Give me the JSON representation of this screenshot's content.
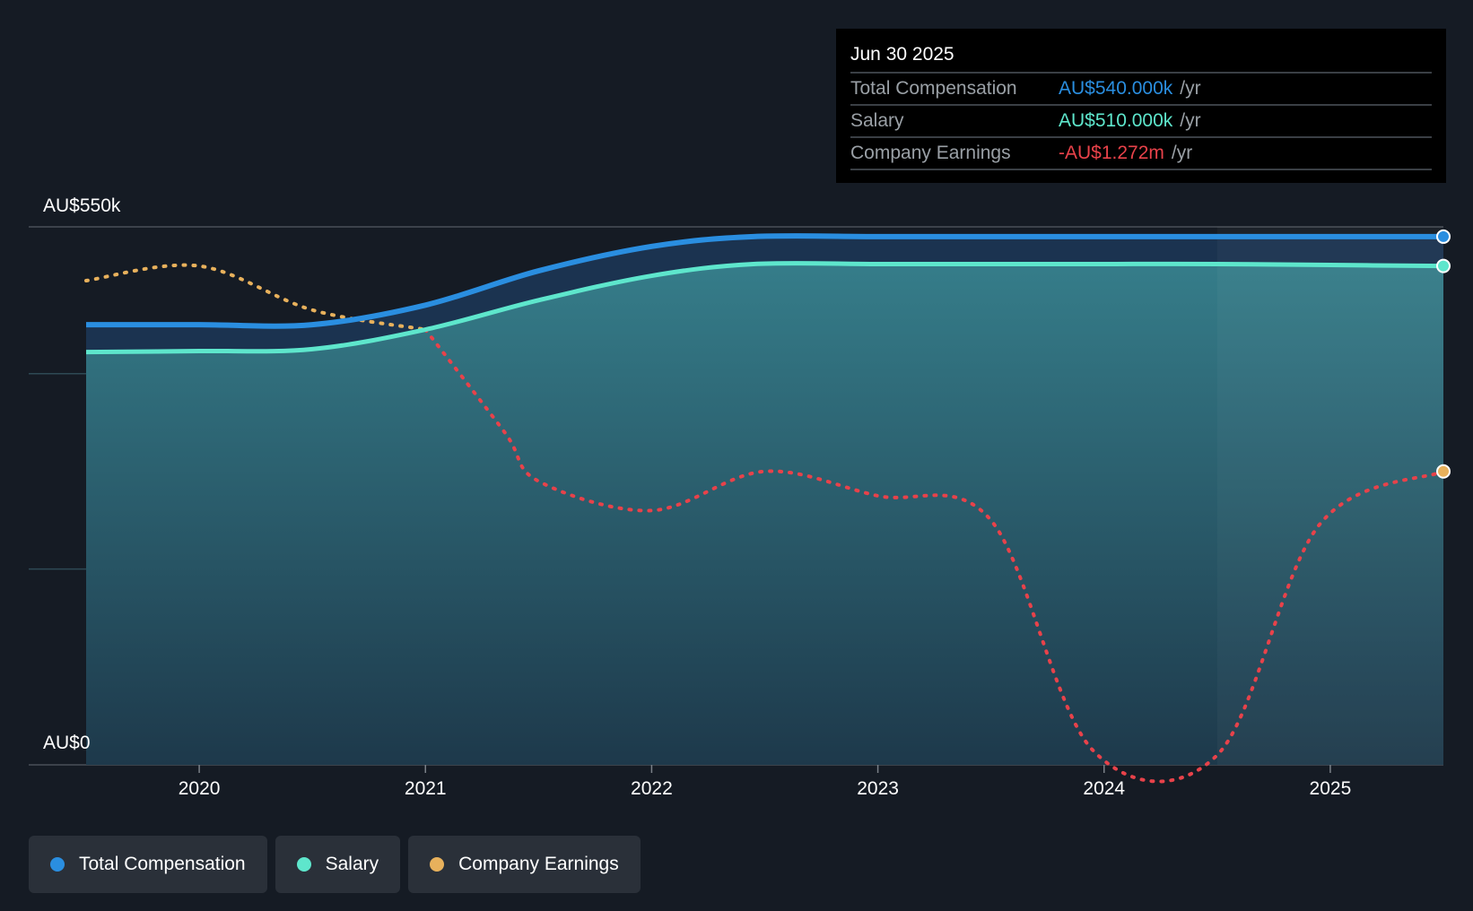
{
  "chart_data": {
    "type": "area",
    "y_axis": {
      "top_label": "AU$550k",
      "bottom_label": "AU$0",
      "ylim": [
        0,
        550
      ]
    },
    "x_ticks": [
      "2020",
      "2021",
      "2022",
      "2023",
      "2024",
      "2025"
    ],
    "xlim": [
      2019.5,
      2025.5
    ],
    "series": [
      {
        "name": "Total Compensation",
        "color": "#2a8ee0",
        "unit": "AU$k",
        "x": [
          2019.5,
          2020.0,
          2020.5,
          2021.0,
          2021.5,
          2022.0,
          2022.45,
          2023.0,
          2023.5,
          2024.0,
          2024.5,
          2025.0,
          2025.5
        ],
        "values": [
          450,
          450,
          450,
          470,
          505,
          530,
          540,
          540,
          540,
          540,
          540,
          540,
          540
        ]
      },
      {
        "name": "Salary",
        "color": "#5ee6cc",
        "unit": "AU$k",
        "x": [
          2019.5,
          2020.0,
          2020.5,
          2021.0,
          2021.5,
          2022.0,
          2022.45,
          2023.0,
          2023.5,
          2024.0,
          2024.5,
          2025.0,
          2025.5
        ],
        "values": [
          422,
          423,
          425,
          445,
          475,
          500,
          512,
          512,
          512,
          512,
          512,
          511,
          510
        ]
      },
      {
        "name": "Company Earnings",
        "color": "#e8b15c",
        "negative_color": "#e8424a",
        "unit": "relative",
        "x": [
          2019.5,
          2020.0,
          2020.5,
          2021.0,
          2021.35,
          2021.5,
          2022.0,
          2022.5,
          2023.0,
          2023.5,
          2023.95,
          2024.5,
          2024.95,
          2025.5
        ],
        "values": [
          495,
          510,
          465,
          445,
          340,
          290,
          260,
          300,
          275,
          250,
          15,
          10,
          245,
          300
        ]
      }
    ]
  },
  "tooltip": {
    "date": "Jun 30 2025",
    "rows": [
      {
        "label": "Total Compensation",
        "value": "AU$540.000k",
        "unit": "/yr",
        "color": "#2a8ee0"
      },
      {
        "label": "Salary",
        "value": "AU$510.000k",
        "unit": "/yr",
        "color": "#5ee6cc"
      },
      {
        "label": "Company Earnings",
        "value": "-AU$1.272m",
        "unit": "/yr",
        "color": "#e8424a"
      }
    ]
  },
  "legend": [
    {
      "label": "Total Compensation",
      "color": "#2a8ee0"
    },
    {
      "label": "Salary",
      "color": "#5ee6cc"
    },
    {
      "label": "Company Earnings",
      "color": "#e8b15c"
    }
  ]
}
